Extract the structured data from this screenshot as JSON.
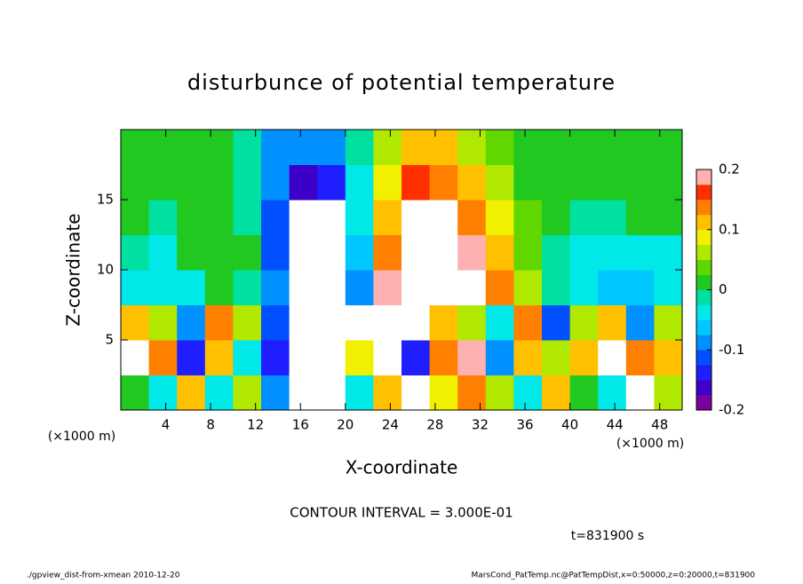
{
  "chart_data": {
    "type": "heatmap",
    "title": "disturbunce of potential temperature",
    "xlabel": "X-coordinate",
    "ylabel": "Z-coordinate",
    "x_unit_labels": [
      "(×1000 m)",
      "(×1000 m)"
    ],
    "annotations": [
      "CONTOUR INTERVAL = 3.000E-01",
      "t=831900 s"
    ],
    "footer_left": "./gpview_dist-from-xmean  2010-12-20",
    "footer_right": "MarsCond_PatTemp.nc@PatTempDist,x=0:50000,z=0:20000,t=831900",
    "xlim": [
      0,
      50
    ],
    "ylim": [
      0,
      20
    ],
    "xticks": [
      4,
      8,
      12,
      16,
      20,
      24,
      28,
      32,
      36,
      40,
      44,
      48
    ],
    "yticks": [
      5,
      10,
      15
    ],
    "xbins": [
      0,
      2.5,
      5,
      7.5,
      10,
      12.5,
      15,
      17.5,
      20,
      22.5,
      25,
      27.5,
      30,
      32.5,
      35,
      37.5,
      40,
      42.5,
      45,
      47.5,
      50
    ],
    "ybins": [
      0,
      2.5,
      5,
      7.5,
      10,
      12.5,
      15,
      17.5,
      20
    ],
    "z": [
      [
        0.01,
        -0.05,
        0.1,
        -0.03,
        0.05,
        -0.1,
        -0.3,
        -0.3,
        -0.05,
        0.1,
        -0.3,
        0.08,
        0.15,
        0.05,
        -0.03,
        0.1,
        0.02,
        -0.05,
        0.3,
        0.05
      ],
      [
        0.3,
        0.15,
        -0.15,
        0.1,
        -0.05,
        -0.15,
        -0.3,
        -0.3,
        0.08,
        -0.3,
        -0.15,
        0.15,
        0.2,
        -0.1,
        0.12,
        0.05,
        0.1,
        0.3,
        0.15,
        0.1
      ],
      [
        0.12,
        0.05,
        -0.1,
        0.15,
        0.05,
        -0.12,
        -0.3,
        -0.3,
        -0.3,
        -0.3,
        -0.3,
        0.1,
        0.05,
        -0.05,
        0.15,
        -0.12,
        0.05,
        0.1,
        -0.1,
        0.05
      ],
      [
        -0.04,
        -0.05,
        -0.03,
        0.01,
        -0.02,
        -0.1,
        -0.3,
        -0.3,
        -0.08,
        0.18,
        0.3,
        0.3,
        0.3,
        0.15,
        0.06,
        -0.02,
        -0.05,
        -0.06,
        -0.06,
        -0.05
      ],
      [
        -0.02,
        -0.03,
        0.01,
        0.01,
        0,
        -0.12,
        -0.3,
        -0.3,
        -0.06,
        0.15,
        0.3,
        0.3,
        0.2,
        0.12,
        0.04,
        -0.01,
        -0.04,
        -0.05,
        -0.05,
        -0.04
      ],
      [
        0.005,
        -0.01,
        0.01,
        0.01,
        -0.02,
        -0.12,
        -0.3,
        -0.3,
        -0.05,
        0.1,
        0.25,
        0.22,
        0.15,
        0.08,
        0.03,
        0,
        -0.01,
        -0.02,
        0,
        0
      ],
      [
        0.01,
        0.01,
        0.01,
        0.01,
        -0.02,
        -0.1,
        -0.17,
        -0.14,
        -0.03,
        0.08,
        0.17,
        0.15,
        0.1,
        0.05,
        0.02,
        0.005,
        0.005,
        0.005,
        0.005,
        0.01
      ],
      [
        0.01,
        0.01,
        0.01,
        0.01,
        -0.01,
        -0.08,
        -0.1,
        -0.08,
        -0.02,
        0.06,
        0.12,
        0.1,
        0.07,
        0.03,
        0.01,
        0.005,
        0.005,
        0.005,
        0.005,
        0.005
      ]
    ],
    "clim": [
      -0.2,
      0.2
    ],
    "cticks": [
      -0.2,
      -0.1,
      0,
      0.1,
      0.2
    ],
    "colors": [
      "#7a00a0",
      "#3c00c8",
      "#1e1eff",
      "#0050ff",
      "#0090ff",
      "#00c8ff",
      "#00e8e8",
      "#00e0a0",
      "#20c820",
      "#60d800",
      "#b0e800",
      "#f0f000",
      "#ffc000",
      "#ff8000",
      "#ff3000",
      "#ffb0b0"
    ],
    "out_of_range_color": "#ffffff"
  }
}
